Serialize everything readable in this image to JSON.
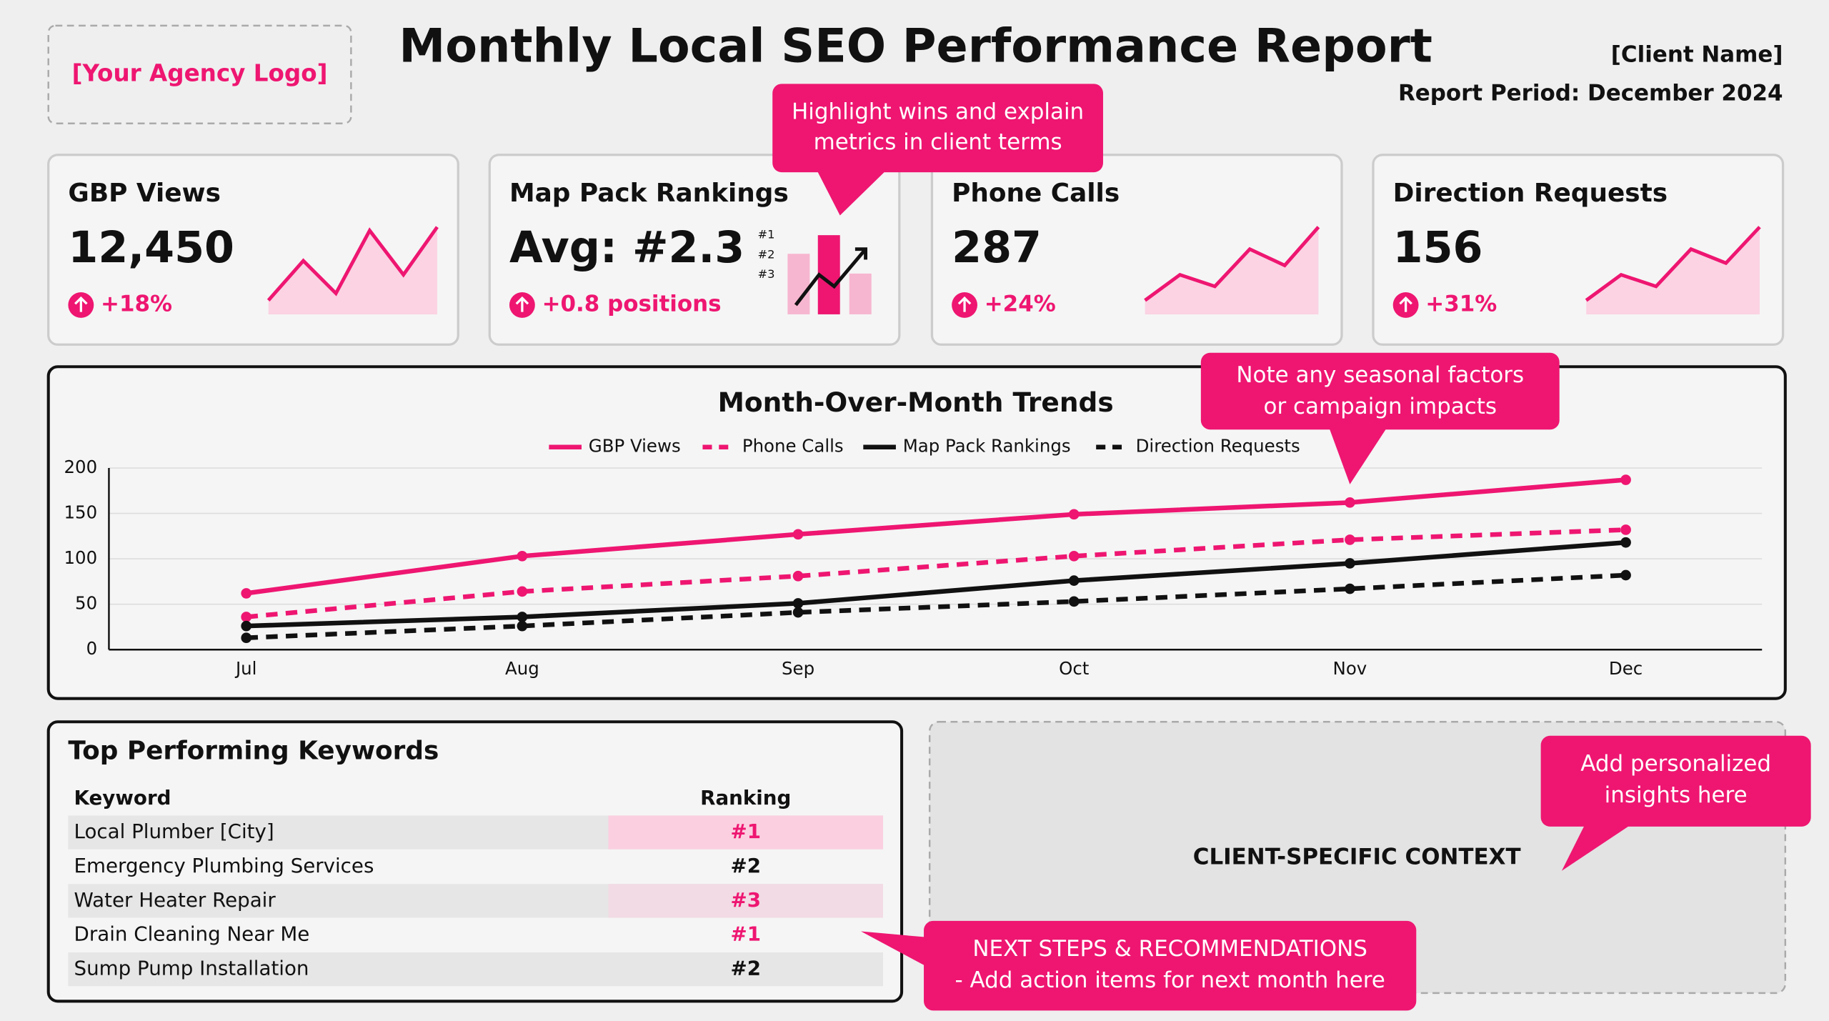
{
  "header": {
    "logo": "[Your Agency Logo]",
    "title": "Monthly Local SEO Performance Report",
    "client": "[Client Name]",
    "period": "Report Period: December 2024"
  },
  "kpis": [
    {
      "title": "GBP Views",
      "value": "12,450",
      "change": "+18%"
    },
    {
      "title": "Map Pack Rankings",
      "value": "Avg: #2.3",
      "change": "+0.8 positions",
      "mini_labels": [
        "#1",
        "#2",
        "#3"
      ]
    },
    {
      "title": "Phone Calls",
      "value": "287",
      "change": "+24%"
    },
    {
      "title": "Direction Requests",
      "value": "156",
      "change": "+31%"
    }
  ],
  "trend_chart": {
    "type": "line",
    "title": "Month-Over-Month Trends",
    "categories": [
      "Jul",
      "Aug",
      "Sep",
      "Oct",
      "Nov",
      "Dec"
    ],
    "series": [
      {
        "name": "GBP Views",
        "color": "#ee1671",
        "style": "solid",
        "values": [
          62,
          103,
          127,
          149,
          162,
          187
        ]
      },
      {
        "name": "Phone Calls",
        "color": "#ee1671",
        "style": "dashed",
        "values": [
          36,
          64,
          81,
          103,
          121,
          132
        ]
      },
      {
        "name": "Map Pack Rankings",
        "color": "#111111",
        "style": "solid",
        "values": [
          26,
          36,
          51,
          76,
          95,
          118
        ]
      },
      {
        "name": "Direction Requests",
        "color": "#111111",
        "style": "dashed",
        "values": [
          13,
          26,
          41,
          53,
          67,
          82
        ]
      }
    ],
    "ylim": [
      0,
      200
    ],
    "yticks": [
      0,
      50,
      100,
      150,
      200
    ],
    "grid": true
  },
  "keywords": {
    "title": "Top Performing Keywords",
    "columns": [
      "Keyword",
      "Ranking"
    ],
    "rows": [
      [
        "Local Plumber [City]",
        "#1"
      ],
      [
        "Emergency Plumbing Services",
        "#2"
      ],
      [
        "Water Heater Repair",
        "#3"
      ],
      [
        "Drain Cleaning Near Me",
        "#1"
      ],
      [
        "Sump Pump Installation",
        "#2"
      ]
    ]
  },
  "context": {
    "label": "CLIENT-SPECIFIC CONTEXT"
  },
  "callouts": [
    {
      "lines": [
        "Highlight wins and explain",
        "metrics in client terms"
      ]
    },
    {
      "lines": [
        "Note any seasonal factors",
        "or campaign impacts"
      ]
    },
    {
      "lines": [
        "Add personalized",
        "insights here"
      ]
    },
    {
      "lines": [
        "NEXT STEPS & RECOMMENDATIONS",
        "- Add action items for next month here"
      ]
    }
  ]
}
